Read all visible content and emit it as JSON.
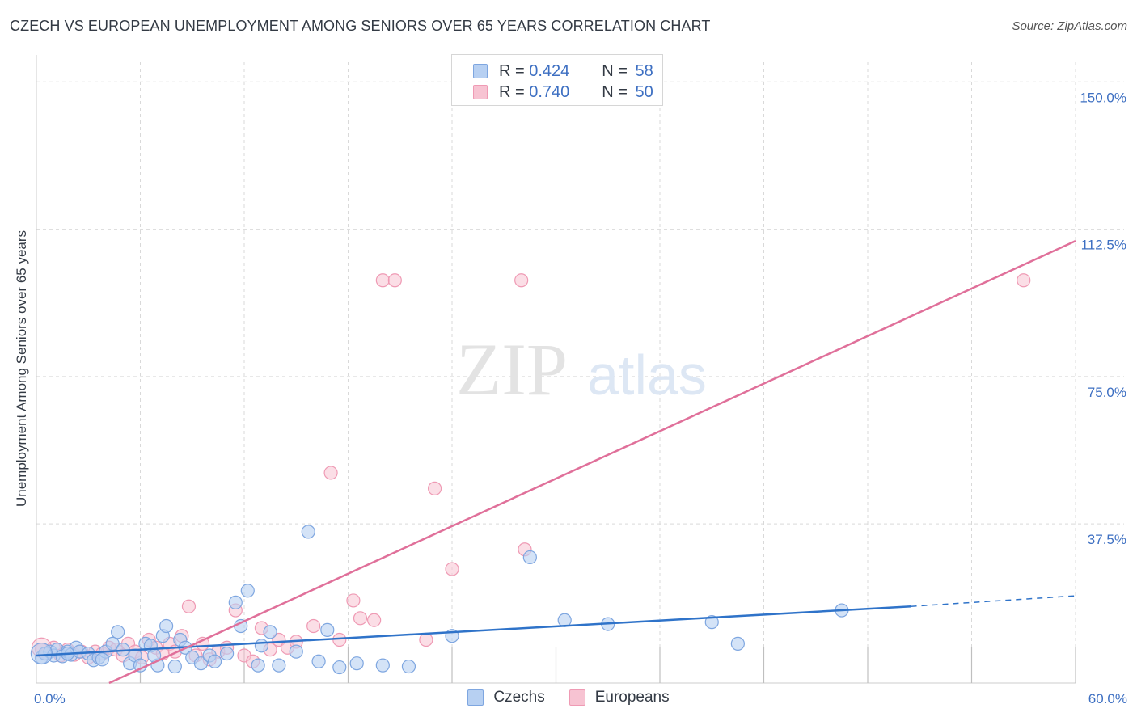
{
  "header": {
    "title": "CZECH VS EUROPEAN UNEMPLOYMENT AMONG SENIORS OVER 65 YEARS CORRELATION CHART",
    "source": "Source: ZipAtlas.com"
  },
  "watermark": {
    "zip": "ZIP",
    "atlas": "atlas"
  },
  "colors": {
    "czech_fill": "#b7d0f2",
    "czech_stroke": "#7ea6e0",
    "czech_line": "#2f73c9",
    "euro_fill": "#f7c3d2",
    "euro_stroke": "#ef9ab4",
    "euro_line": "#e0709a",
    "axis_text": "#3d6fc2",
    "grid": "#d9d9d9"
  },
  "legend": {
    "rows": [
      {
        "r_label": "R = ",
        "r_value": "0.424",
        "n_label": "N = ",
        "n_value": "58"
      },
      {
        "r_label": "R = ",
        "r_value": "0.740",
        "n_label": "N = ",
        "n_value": "50"
      }
    ]
  },
  "bottom_legend": {
    "czech": "Czechs",
    "euro": "Europeans"
  },
  "chart_data": {
    "type": "scatter",
    "title": "CZECH VS EUROPEAN UNEMPLOYMENT AMONG SENIORS OVER 65 YEARS CORRELATION CHART",
    "xlabel": "",
    "ylabel": "Unemployment Among Seniors over 65 years",
    "xlim": [
      0,
      60
    ],
    "ylim": [
      -3,
      155
    ],
    "x_tick_labels": [
      {
        "value": 0,
        "label": "0.0%"
      },
      {
        "value": 60,
        "label": "60.0%"
      }
    ],
    "y_tick_labels": [
      {
        "value": 37.5,
        "label": "37.5%"
      },
      {
        "value": 75,
        "label": "75.0%"
      },
      {
        "value": 112.5,
        "label": "112.5%"
      },
      {
        "value": 150,
        "label": "150.0%"
      }
    ],
    "series": [
      {
        "name": "Czechs",
        "r": 0.424,
        "n": 58,
        "trend": {
          "x0": 0,
          "y0": 4.0,
          "x1": 50.5,
          "y1": 16.5,
          "dash_x1": 60,
          "dash_y1": 19.2
        },
        "points": [
          [
            0.3,
            3.5
          ],
          [
            0.5,
            4.5
          ],
          [
            0.8,
            5
          ],
          [
            1.0,
            4
          ],
          [
            1.2,
            5.5
          ],
          [
            1.5,
            3.8
          ],
          [
            1.8,
            5
          ],
          [
            2.0,
            4.2
          ],
          [
            2.3,
            6
          ],
          [
            2.5,
            5
          ],
          [
            3.0,
            4.5
          ],
          [
            3.3,
            2.8
          ],
          [
            3.6,
            3.5
          ],
          [
            4.0,
            5
          ],
          [
            4.4,
            7
          ],
          [
            4.7,
            10
          ],
          [
            5.0,
            5.5
          ],
          [
            5.4,
            2
          ],
          [
            5.7,
            4
          ],
          [
            6.0,
            1.5
          ],
          [
            6.3,
            7
          ],
          [
            6.6,
            6.5
          ],
          [
            7.0,
            1.5
          ],
          [
            7.3,
            9
          ],
          [
            7.5,
            11.5
          ],
          [
            8.0,
            1.2
          ],
          [
            8.3,
            8
          ],
          [
            8.6,
            6
          ],
          [
            9.0,
            3.5
          ],
          [
            9.5,
            2
          ],
          [
            10.0,
            4
          ],
          [
            10.3,
            2.5
          ],
          [
            11.0,
            4.5
          ],
          [
            11.5,
            17.5
          ],
          [
            11.8,
            11.5
          ],
          [
            12.2,
            20.5
          ],
          [
            12.8,
            1.5
          ],
          [
            13.0,
            6.5
          ],
          [
            13.5,
            10
          ],
          [
            14.0,
            1.5
          ],
          [
            15.0,
            5
          ],
          [
            15.7,
            35.5
          ],
          [
            16.3,
            2.5
          ],
          [
            16.8,
            10.5
          ],
          [
            17.5,
            1
          ],
          [
            18.5,
            2
          ],
          [
            20.0,
            1.5
          ],
          [
            21.5,
            1.2
          ],
          [
            24.0,
            9
          ],
          [
            28.5,
            29
          ],
          [
            30.5,
            13
          ],
          [
            33.0,
            12
          ],
          [
            39.0,
            12.5
          ],
          [
            40.5,
            7
          ],
          [
            46.5,
            15.5
          ],
          [
            1.8,
            4.5
          ],
          [
            3.8,
            3
          ],
          [
            6.8,
            4
          ]
        ]
      },
      {
        "name": "Europeans",
        "r": 0.74,
        "n": 50,
        "trend": {
          "x0": 4.2,
          "y0": -3,
          "x1": 60,
          "y1": 109.5
        },
        "points": [
          [
            0.3,
            5.5
          ],
          [
            0.6,
            4.5
          ],
          [
            1.0,
            6
          ],
          [
            1.4,
            4
          ],
          [
            1.8,
            5.5
          ],
          [
            2.2,
            4.2
          ],
          [
            2.6,
            5
          ],
          [
            3.0,
            3.5
          ],
          [
            3.4,
            5
          ],
          [
            3.8,
            4.5
          ],
          [
            4.2,
            6
          ],
          [
            4.6,
            5.5
          ],
          [
            5.0,
            4
          ],
          [
            5.3,
            7
          ],
          [
            5.7,
            5
          ],
          [
            6.1,
            3.5
          ],
          [
            6.5,
            8
          ],
          [
            6.9,
            6
          ],
          [
            7.3,
            4.5
          ],
          [
            7.7,
            7
          ],
          [
            8.0,
            5
          ],
          [
            8.4,
            9
          ],
          [
            8.8,
            16.5
          ],
          [
            9.2,
            4
          ],
          [
            9.6,
            7
          ],
          [
            10.0,
            3
          ],
          [
            10.5,
            5
          ],
          [
            11.0,
            6
          ],
          [
            11.5,
            15.5
          ],
          [
            12.0,
            4
          ],
          [
            12.5,
            2.5
          ],
          [
            13.0,
            11
          ],
          [
            13.5,
            5.5
          ],
          [
            14.0,
            8
          ],
          [
            14.5,
            6
          ],
          [
            15.0,
            7.5
          ],
          [
            16.0,
            11.5
          ],
          [
            17.0,
            50.5
          ],
          [
            17.5,
            8
          ],
          [
            18.3,
            18
          ],
          [
            18.7,
            13.5
          ],
          [
            19.5,
            13
          ],
          [
            20.0,
            99.5
          ],
          [
            20.7,
            99.5
          ],
          [
            22.5,
            8
          ],
          [
            23.0,
            46.5
          ],
          [
            24.0,
            26
          ],
          [
            28.0,
            99.5
          ],
          [
            28.2,
            31
          ],
          [
            57.0,
            99.5
          ]
        ]
      }
    ]
  }
}
